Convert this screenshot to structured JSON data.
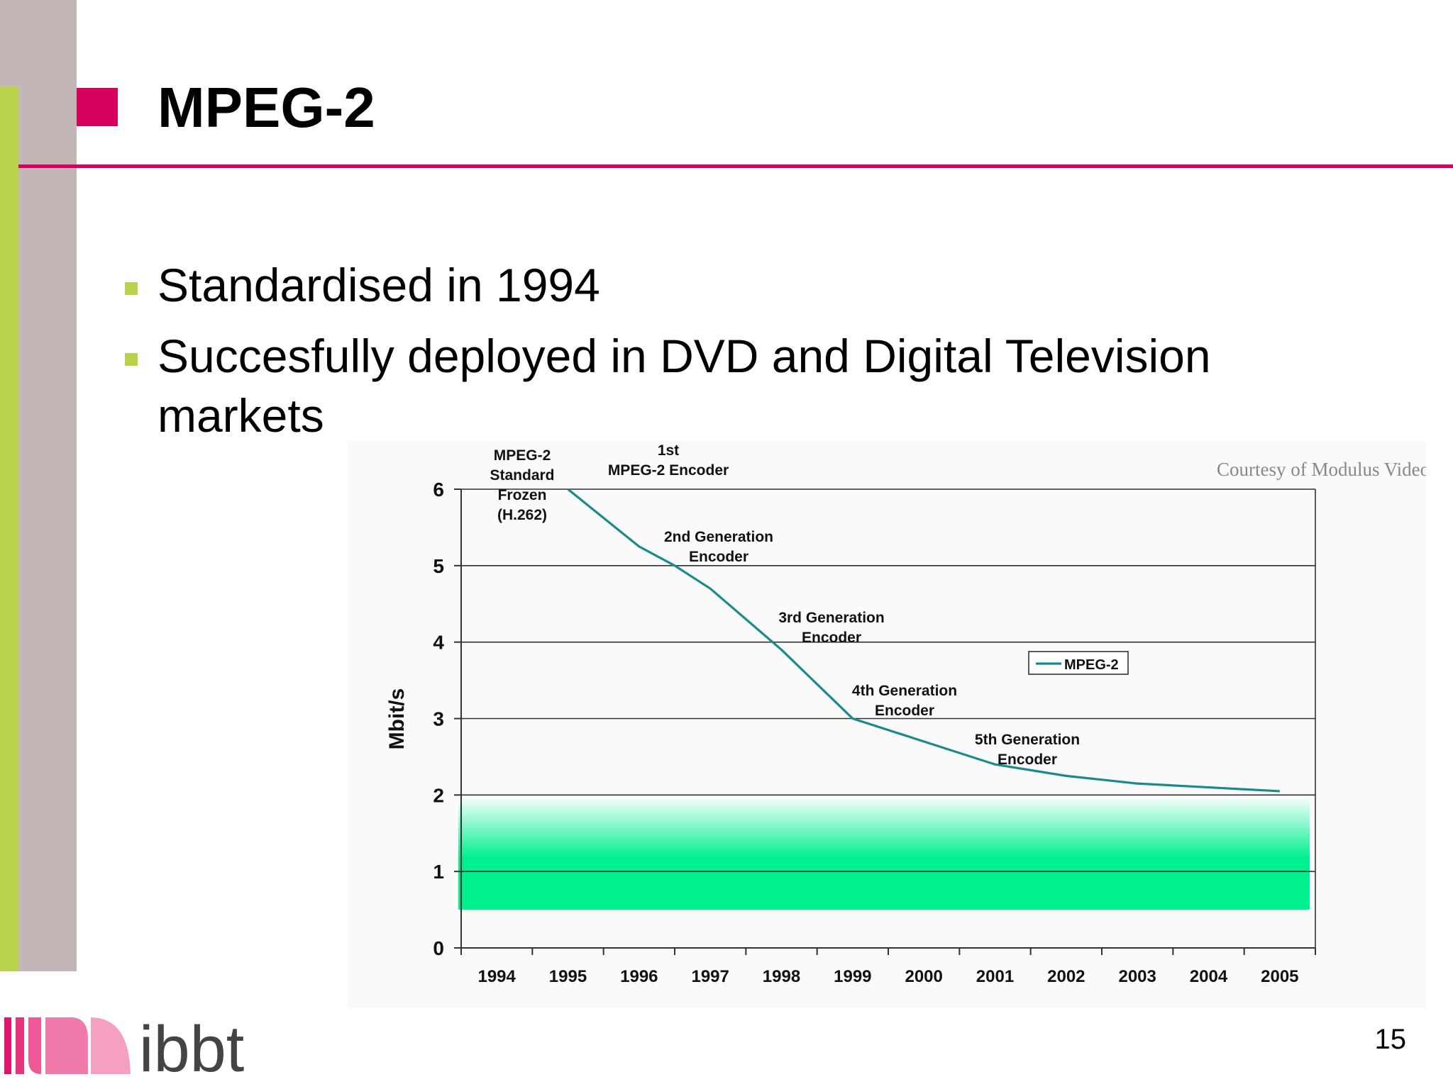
{
  "slide": {
    "title": "MPEG-2",
    "bullets": [
      "Standardised in 1994",
      "Succesfully deployed in DVD and Digital Television markets"
    ],
    "page_number": "15",
    "logo_text": "ibbt"
  },
  "chart_data": {
    "type": "line",
    "title": "",
    "courtesy": "Courtesy of Modulus Video",
    "xlabel": "",
    "ylabel": "Mbit/s",
    "x": [
      1995,
      1996,
      1997,
      1998,
      1999,
      2000,
      2001,
      2002,
      2003,
      2004,
      2005
    ],
    "categories": [
      "1994",
      "1995",
      "1996",
      "1997",
      "1998",
      "1999",
      "2000",
      "2001",
      "2002",
      "2003",
      "2004",
      "2005"
    ],
    "yticks": [
      "0",
      "1",
      "2",
      "3",
      "4",
      "5",
      "6"
    ],
    "ylim": [
      0,
      6
    ],
    "grid": true,
    "legend_position": "right",
    "series": [
      {
        "name": "MPEG-2",
        "color": "#1a8a8a",
        "x": [
          1995,
          1996,
          1996.5,
          1997,
          1998,
          1999,
          2000,
          2001,
          2002,
          2003,
          2004,
          2005
        ],
        "values": [
          6.0,
          5.25,
          5.0,
          4.7,
          3.9,
          3.0,
          2.7,
          2.4,
          2.25,
          2.15,
          2.1,
          2.05
        ]
      }
    ],
    "shaded_band": {
      "from": 0.5,
      "to": 2.0,
      "color_bottom": "#00f090",
      "color_top": "#ffffff"
    },
    "annotations": [
      {
        "text": "MPEG-2\nStandard\nFrozen\n(H.262)"
      },
      {
        "text": "1st\nMPEG-2 Encoder"
      },
      {
        "text": "2nd Generation\nEncoder"
      },
      {
        "text": "3rd Generation\nEncoder"
      },
      {
        "text": "4th Generation\nEncoder"
      },
      {
        "text": "5th Generation\nEncoder"
      }
    ]
  }
}
